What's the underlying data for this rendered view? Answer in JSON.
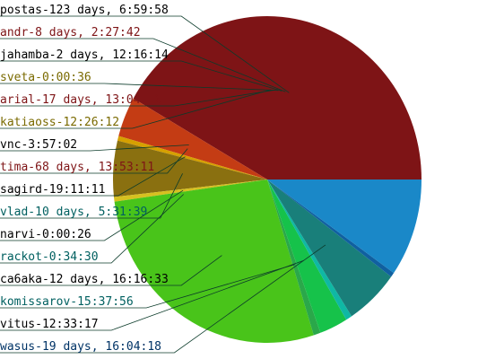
{
  "chart_data": {
    "type": "pie",
    "title": "",
    "slices": [
      {
        "label": "postas-123 days, 6:59:58",
        "value": 10652398,
        "color": "#7e1416",
        "label_color": "#000000"
      },
      {
        "label": "andr-8 days, 2:27:42",
        "value": 700062,
        "color": "#7e1416",
        "label_color": "#7e1416"
      },
      {
        "label": "jahamba-2 days, 12:16:14",
        "value": 216974,
        "color": "#7e1416",
        "label_color": "#000000"
      },
      {
        "label": "sveta-0:00:36",
        "value": 36,
        "color": "#7e1416",
        "label_color": "#7a6a00"
      },
      {
        "label": "arial-17 days, 13:04:10",
        "value": 1515850,
        "color": "#7e1416",
        "label_color": "#7e1416"
      },
      {
        "label": "katiaoss-12:26:12",
        "value": 44772,
        "color": "#7e1416",
        "label_color": "#7a6a00"
      },
      {
        "label": "vnc-3:57:02",
        "value": 14222,
        "color": "#c43c14",
        "label_color": "#000000"
      },
      {
        "label": "tima-68 days, 13:53:11",
        "value": 5925191,
        "color": "#c43c14",
        "label_color": "#7e1416"
      },
      {
        "label": "sagird-19:11:11",
        "value": 69071,
        "color": "#d6a000",
        "label_color": "#000000"
      },
      {
        "label": "vlad-10 days, 5:31:39",
        "value": 883899,
        "color": "#8a7010",
        "label_color": "#006060"
      },
      {
        "label": "narvi-0:00:26",
        "value": 26,
        "color": "#d6c020",
        "label_color": "#000000"
      },
      {
        "label": "rackot-0:34:30",
        "value": 2070,
        "color": "#d6c020",
        "label_color": "#006060"
      },
      {
        "label": "ca6aka-12 days, 16:16:33",
        "value": 1095393,
        "color": "#49c41a",
        "label_color": "#000000"
      },
      {
        "label": "komissarov-15:37:56",
        "value": 56276,
        "color": "#2aa84a",
        "label_color": "#006060"
      },
      {
        "label": "vitus-12:33:17",
        "value": 45197,
        "color": "#16c24a",
        "label_color": "#000000"
      },
      {
        "label": "wasus-19 days, 16:04:18",
        "value": 1699458,
        "color": "#197f7a",
        "label_color": "#003366"
      }
    ],
    "render_slices": [
      {
        "value": 45.2,
        "color": "#7e1416"
      },
      {
        "value": 4.3,
        "color": "#c43c14"
      },
      {
        "value": 0.5,
        "color": "#d6a000"
      },
      {
        "value": 6.0,
        "color": "#8a7010"
      },
      {
        "value": 0.5,
        "color": "#d6c020"
      },
      {
        "value": 30.0,
        "color": "#49c41a"
      },
      {
        "value": 0.8,
        "color": "#2aa84a"
      },
      {
        "value": 3.2,
        "color": "#16c24a"
      },
      {
        "value": 0.7,
        "color": "#0fb8a4"
      },
      {
        "value": 6.1,
        "color": "#197f7a"
      },
      {
        "value": 0.5,
        "color": "#1060a0"
      },
      {
        "value": 10.5,
        "color": "#1a88c8"
      }
    ],
    "legend": "left",
    "start_angle": "east, counter-clockwise"
  }
}
